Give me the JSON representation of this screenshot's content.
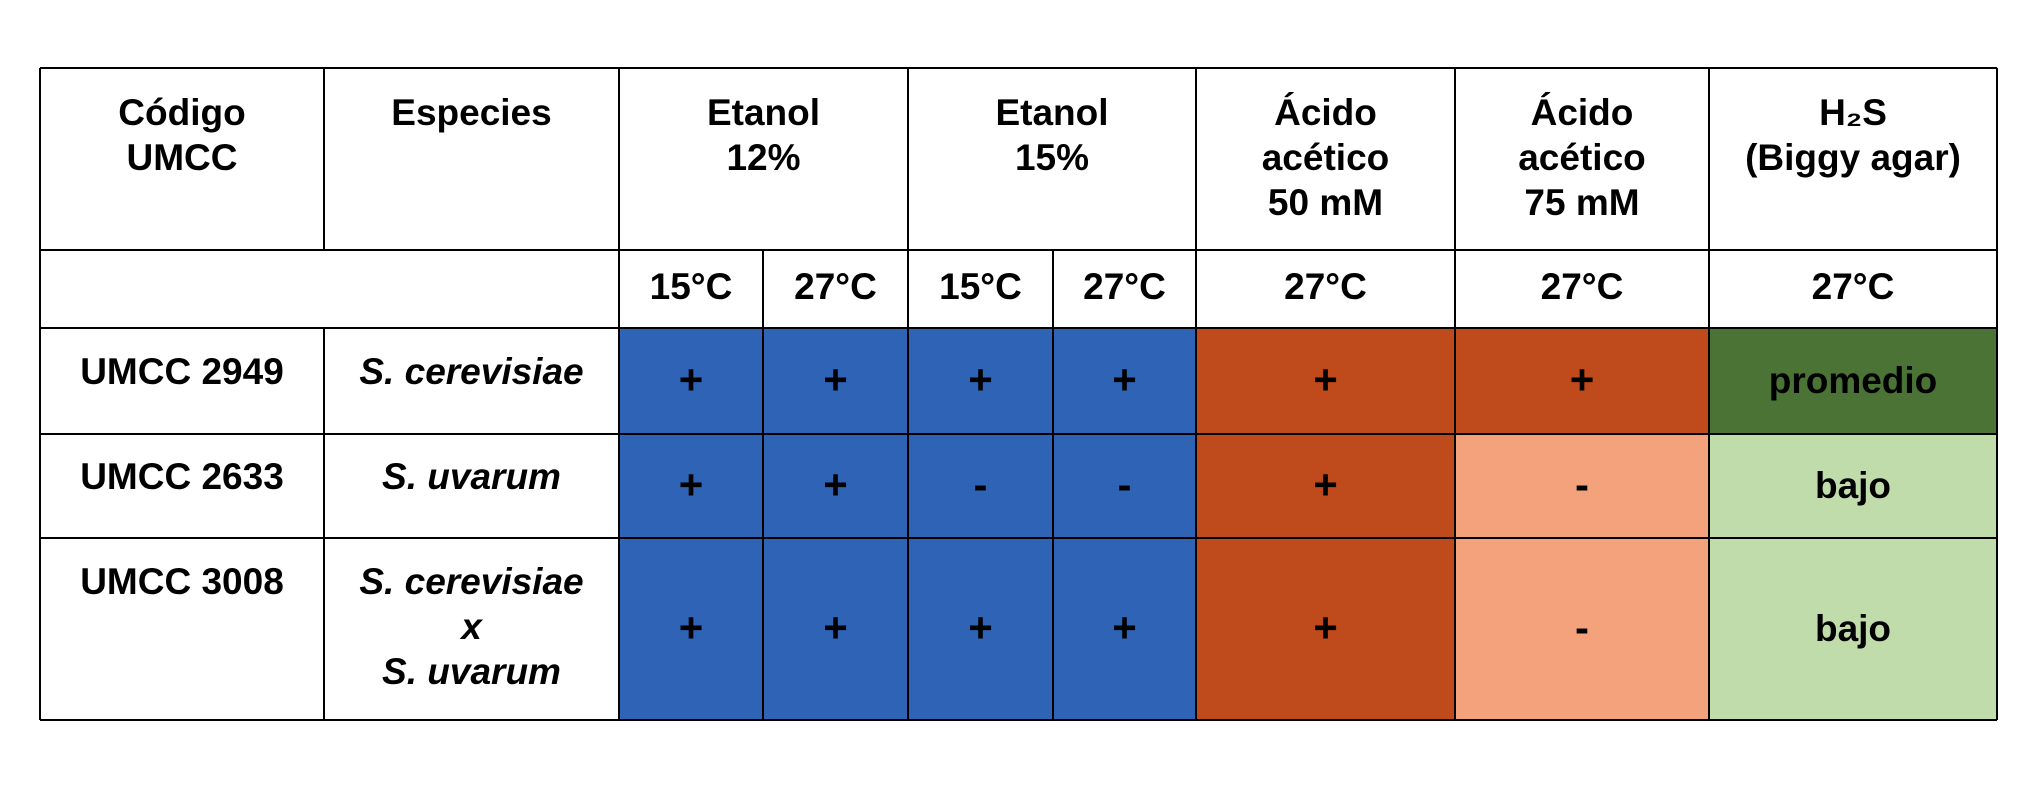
{
  "table": {
    "header": [
      [
        "Código",
        "UMCC"
      ],
      [
        "Especies"
      ],
      [
        "Etanol",
        "12%"
      ],
      [
        "Etanol",
        "15%"
      ],
      [
        "Ácido",
        "acético",
        "50 mM"
      ],
      [
        "Ácido",
        "acético",
        "75 mM"
      ],
      [
        "H₂S",
        "(Biggy agar)"
      ]
    ],
    "temperatures": [
      "15°C",
      "27°C",
      "15°C",
      "27°C",
      "27°C",
      "27°C",
      "27°C"
    ],
    "rows": [
      {
        "code": "UMCC 2949",
        "species": [
          "S. cerevisiae"
        ],
        "results": [
          "+",
          "+",
          "+",
          "+",
          "+",
          "+",
          "promedio"
        ],
        "colors": [
          "#2e63b5",
          "#2e63b5",
          "#2e63b5",
          "#2e63b5",
          "#bf4a1b",
          "#bf4a1b",
          "#4a7335"
        ]
      },
      {
        "code": "UMCC 2633",
        "species": [
          "S. uvarum"
        ],
        "results": [
          "+",
          "+",
          "-",
          "-",
          "+",
          "-",
          "bajo"
        ],
        "colors": [
          "#2e63b5",
          "#2e63b5",
          "#2e63b5",
          "#2e63b5",
          "#bf4a1b",
          "#f4a27c",
          "#c0dcaa"
        ]
      },
      {
        "code": "UMCC 3008",
        "species": [
          "S. cerevisiae",
          "x",
          "S. uvarum"
        ],
        "results": [
          "+",
          "+",
          "+",
          "+",
          "+",
          "-",
          "bajo"
        ],
        "colors": [
          "#2e63b5",
          "#2e63b5",
          "#2e63b5",
          "#2e63b5",
          "#bf4a1b",
          "#f4a27c",
          "#c0dcaa"
        ]
      }
    ]
  }
}
